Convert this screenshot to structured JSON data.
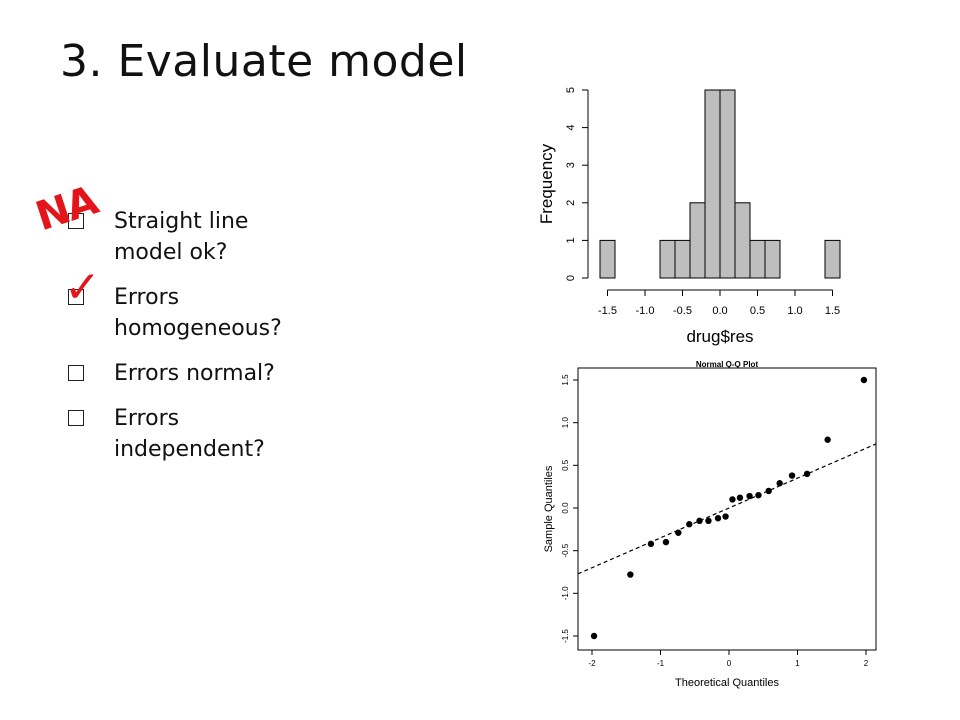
{
  "slide": {
    "title": "3. Evaluate model",
    "checklist": [
      {
        "label": "Straight line model ok?",
        "checked": false
      },
      {
        "label": "Errors homogeneous?",
        "checked": true
      },
      {
        "label": "Errors normal?",
        "checked": false
      },
      {
        "label": "Errors independent?",
        "checked": false
      }
    ],
    "annotations": {
      "na": "NA",
      "check": "✓",
      "color": "#e4141b"
    }
  },
  "chart_data": [
    {
      "type": "bar",
      "subtype": "histogram",
      "title": "",
      "xlabel": "drug$res",
      "ylabel": "Frequency",
      "bins": [
        {
          "from": -1.6,
          "to": -1.4,
          "count": 1
        },
        {
          "from": -1.4,
          "to": -1.2,
          "count": 0
        },
        {
          "from": -1.2,
          "to": -1.0,
          "count": 0
        },
        {
          "from": -1.0,
          "to": -0.8,
          "count": 0
        },
        {
          "from": -0.8,
          "to": -0.6,
          "count": 1
        },
        {
          "from": -0.6,
          "to": -0.4,
          "count": 1
        },
        {
          "from": -0.4,
          "to": -0.2,
          "count": 2
        },
        {
          "from": -0.2,
          "to": 0.0,
          "count": 5
        },
        {
          "from": 0.0,
          "to": 0.2,
          "count": 5
        },
        {
          "from": 0.2,
          "to": 0.4,
          "count": 2
        },
        {
          "from": 0.4,
          "to": 0.6,
          "count": 1
        },
        {
          "from": 0.6,
          "to": 0.8,
          "count": 1
        },
        {
          "from": 0.8,
          "to": 1.0,
          "count": 0
        },
        {
          "from": 1.0,
          "to": 1.2,
          "count": 0
        },
        {
          "from": 1.2,
          "to": 1.4,
          "count": 0
        },
        {
          "from": 1.4,
          "to": 1.6,
          "count": 1
        }
      ],
      "xticks": [
        "-1.5",
        "-1.0",
        "-0.5",
        "0.0",
        "0.5",
        "1.0",
        "1.5"
      ],
      "yticks": [
        "0",
        "1",
        "2",
        "3",
        "4",
        "5"
      ],
      "xlim": [
        -1.6,
        1.6
      ],
      "ylim": [
        0,
        5
      ],
      "grid": false
    },
    {
      "type": "scatter",
      "subtype": "qq-plot",
      "title": "Normal Q-Q Plot",
      "xlabel": "Theoretical Quantiles",
      "ylabel": "Sample Quantiles",
      "x": [
        -1.97,
        -1.44,
        -1.14,
        -0.92,
        -0.74,
        -0.58,
        -0.43,
        -0.3,
        -0.16,
        -0.05,
        0.05,
        0.16,
        0.3,
        0.43,
        0.58,
        0.74,
        0.92,
        1.14,
        1.44,
        1.97
      ],
      "y": [
        -1.5,
        -0.78,
        -0.42,
        -0.4,
        -0.29,
        -0.19,
        -0.15,
        -0.15,
        -0.12,
        -0.1,
        0.1,
        0.12,
        0.14,
        0.15,
        0.2,
        0.29,
        0.38,
        0.4,
        0.8,
        1.5
      ],
      "reference_line": {
        "intercept": 0.0,
        "slope": 0.35,
        "style": "dashed"
      },
      "xticks": [
        "-2",
        "-1",
        "0",
        "1",
        "2"
      ],
      "yticks": [
        "-1.5",
        "-1.0",
        "-0.5",
        "0.0",
        "0.5",
        "1.0",
        "1.5"
      ],
      "xlim": [
        -2,
        2
      ],
      "ylim": [
        -1.5,
        1.5
      ],
      "grid": false
    }
  ]
}
